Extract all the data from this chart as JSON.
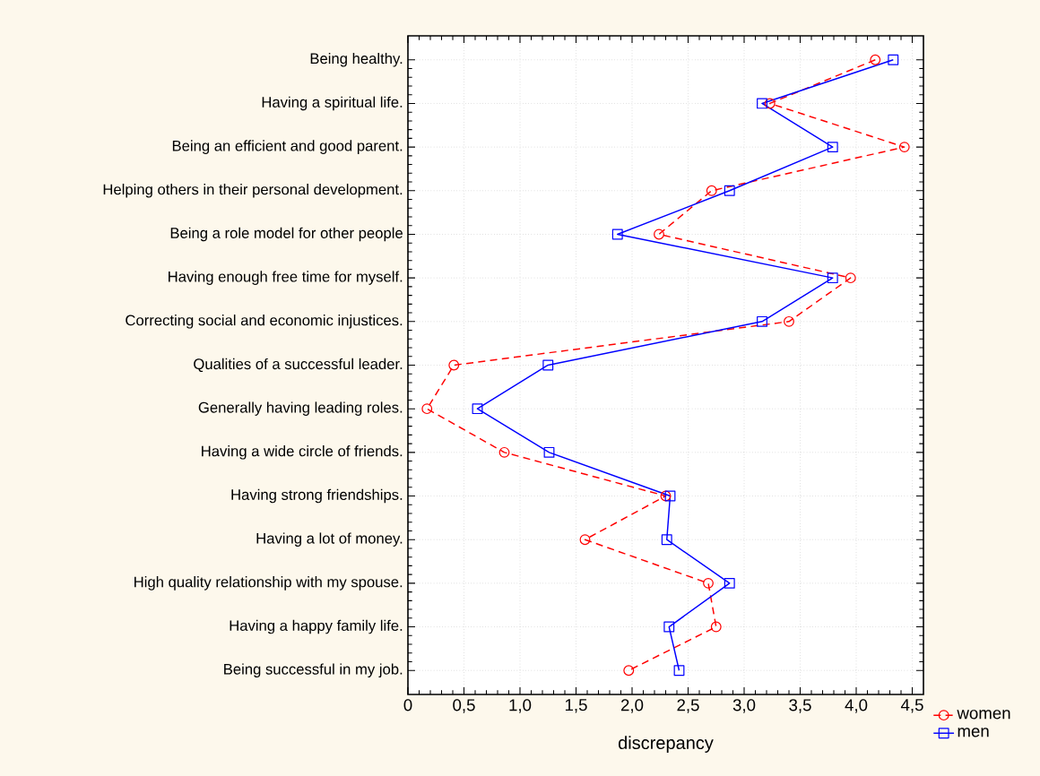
{
  "chart_data": {
    "type": "line",
    "orientation": "horizontal",
    "xlabel": "discrepancy",
    "categories": [
      "Being healthy.",
      "Having a spiritual life.",
      "Being an efficient and good parent.",
      "Helping others in their personal development.",
      "Being a role model for other people",
      "Having enough free time for myself.",
      "Correcting social and economic injustices.",
      "Qualities of a successful leader.",
      "Generally having leading roles.",
      "Having a wide circle of friends.",
      "Having strong friendships.",
      "Having a lot of money.",
      "High quality relationship with my spouse.",
      "Having a happy family life.",
      "Being successful in my job."
    ],
    "series": [
      {
        "name": "women",
        "color": "#ff0000",
        "marker": "circle",
        "line_style": "dashed",
        "values": [
          4.17,
          3.23,
          4.43,
          2.71,
          2.24,
          3.95,
          3.4,
          0.41,
          0.17,
          0.86,
          2.3,
          1.58,
          2.68,
          2.75,
          1.97
        ]
      },
      {
        "name": "men",
        "color": "#0000ff",
        "marker": "square",
        "line_style": "solid",
        "values": [
          4.33,
          3.16,
          3.79,
          2.87,
          1.87,
          3.79,
          3.16,
          1.25,
          0.62,
          1.26,
          2.34,
          2.31,
          2.87,
          2.33,
          2.42
        ]
      }
    ],
    "xlim": [
      0,
      4.6
    ],
    "xticks": [
      0,
      {
        "value": 0.5,
        "label": "0,5"
      },
      {
        "value": 1.0,
        "label": "1,0"
      },
      {
        "value": 1.5,
        "label": "1,5"
      },
      {
        "value": 2.0,
        "label": "2,0"
      },
      {
        "value": 2.5,
        "label": "2,5"
      },
      {
        "value": 3.0,
        "label": "3,0"
      },
      {
        "value": 3.5,
        "label": "3,5"
      },
      {
        "value": 4.0,
        "label": "4,0"
      },
      {
        "value": 4.5,
        "label": "4,5"
      }
    ],
    "grid": true,
    "legend": "bottom right"
  }
}
